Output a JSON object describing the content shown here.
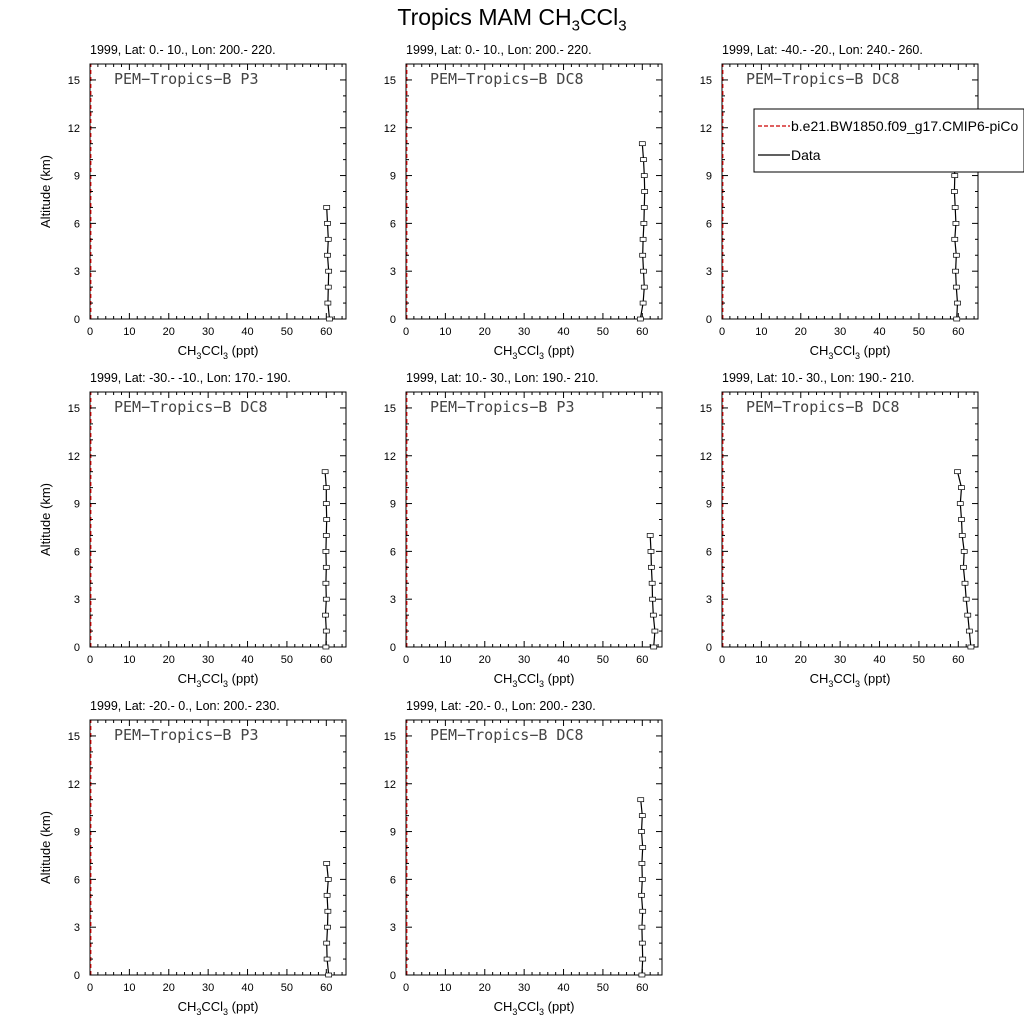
{
  "title": {
    "main": "Tropics MAM CH",
    "sub1": "3",
    "mid": "CCl",
    "sub2": "3"
  },
  "chart_data": {
    "type": "line",
    "xlabel": {
      "prefix": "CH",
      "sub1": "3",
      "mid": "CCl",
      "sub2": "3",
      "suffix": " (ppt)"
    },
    "ylabel": "Altitude (km)",
    "xlim": [
      0,
      65
    ],
    "ylim": [
      0,
      16
    ],
    "xticks": [
      0,
      10,
      20,
      30,
      40,
      50,
      60
    ],
    "yticks": [
      0,
      3,
      6,
      9,
      12,
      15
    ],
    "legend": {
      "placement": "top-right of panel 3",
      "entries": [
        {
          "label": "b.e21.BW1850.f09_g17.CMIP6-piCo",
          "style": "dashed",
          "color": "#cc0000"
        },
        {
          "label": "Data",
          "style": "solid",
          "color": "#000000"
        }
      ]
    },
    "panels": [
      {
        "subtitle": "1999, Lat: 0.- 10., Lon: 200.- 220.",
        "campaign": "PEM−Tropics−B P3",
        "series": [
          {
            "name": "Data",
            "x": [
              60.8,
              60.4,
              60.5,
              60.6,
              60.3,
              60.5,
              60.3,
              60.1
            ],
            "y": [
              0,
              1,
              2,
              3,
              4,
              5,
              6,
              7
            ]
          }
        ]
      },
      {
        "subtitle": "1999, Lat: 0.- 10., Lon: 200.- 220.",
        "campaign": "PEM−Tropics−B DC8",
        "series": [
          {
            "name": "Data",
            "x": [
              59.5,
              60.2,
              60.5,
              60.3,
              60.1,
              60.2,
              60.4,
              60.5,
              60.6,
              60.5,
              60.3,
              60.0
            ],
            "y": [
              0,
              1,
              2,
              3,
              4,
              5,
              6,
              7,
              8,
              9,
              10,
              11
            ]
          }
        ]
      },
      {
        "subtitle": "1999, Lat: -40.- -20., Lon: 240.- 260.",
        "campaign": "PEM−Tropics−B DC8",
        "series": [
          {
            "name": "Data",
            "x": [
              59.6,
              59.8,
              59.5,
              59.3,
              59.5,
              59.1,
              59.4,
              59.2,
              59.0,
              59.1,
              58.9,
              58.5
            ],
            "y": [
              0,
              1,
              2,
              3,
              4,
              5,
              6,
              7,
              8,
              9,
              10,
              11
            ]
          }
        ]
      },
      {
        "subtitle": "1999, Lat: -30.- -10., Lon: 170.- 190.",
        "campaign": "PEM−Tropics−B DC8",
        "series": [
          {
            "name": "Data",
            "x": [
              59.9,
              60.0,
              59.8,
              60.0,
              59.9,
              60.0,
              59.9,
              60.0,
              60.1,
              60.0,
              60.0,
              59.7
            ],
            "y": [
              0,
              1,
              2,
              3,
              4,
              5,
              6,
              7,
              8,
              9,
              10,
              11
            ]
          }
        ]
      },
      {
        "subtitle": "1999, Lat: 10.- 30., Lon: 190.- 210.",
        "campaign": "PEM−Tropics−B P3",
        "series": [
          {
            "name": "Data",
            "x": [
              62.9,
              63.2,
              62.8,
              62.6,
              62.5,
              62.3,
              62.2,
              62.0
            ],
            "y": [
              0,
              1,
              2,
              3,
              4,
              5,
              6,
              7
            ]
          }
        ]
      },
      {
        "subtitle": "1999, Lat: 10.- 30., Lon: 190.- 210.",
        "campaign": "PEM−Tropics−B DC8",
        "series": [
          {
            "name": "Data",
            "x": [
              63.2,
              62.8,
              62.4,
              62.0,
              61.7,
              61.3,
              61.5,
              61.0,
              60.8,
              60.5,
              60.8,
              59.8
            ],
            "y": [
              0,
              1,
              2,
              3,
              4,
              5,
              6,
              7,
              8,
              9,
              10,
              11
            ]
          }
        ]
      },
      {
        "subtitle": "1999, Lat: -20.- 0., Lon: 200.- 230.",
        "campaign": "PEM−Tropics−B P3",
        "series": [
          {
            "name": "Data",
            "x": [
              60.6,
              60.2,
              60.1,
              60.3,
              60.4,
              60.2,
              60.5,
              60.1
            ],
            "y": [
              0,
              1,
              2,
              3,
              4,
              5,
              6,
              7
            ]
          }
        ]
      },
      {
        "subtitle": "1999, Lat: -20.- 0., Lon: 200.- 230.",
        "campaign": "PEM−Tropics−B DC8",
        "series": [
          {
            "name": "Data",
            "x": [
              59.9,
              60.1,
              60.0,
              59.9,
              60.1,
              59.8,
              60.0,
              59.9,
              60.1,
              59.8,
              60.0,
              59.6
            ],
            "y": [
              0,
              1,
              2,
              3,
              4,
              5,
              6,
              7,
              8,
              9,
              10,
              11
            ]
          }
        ]
      }
    ]
  }
}
